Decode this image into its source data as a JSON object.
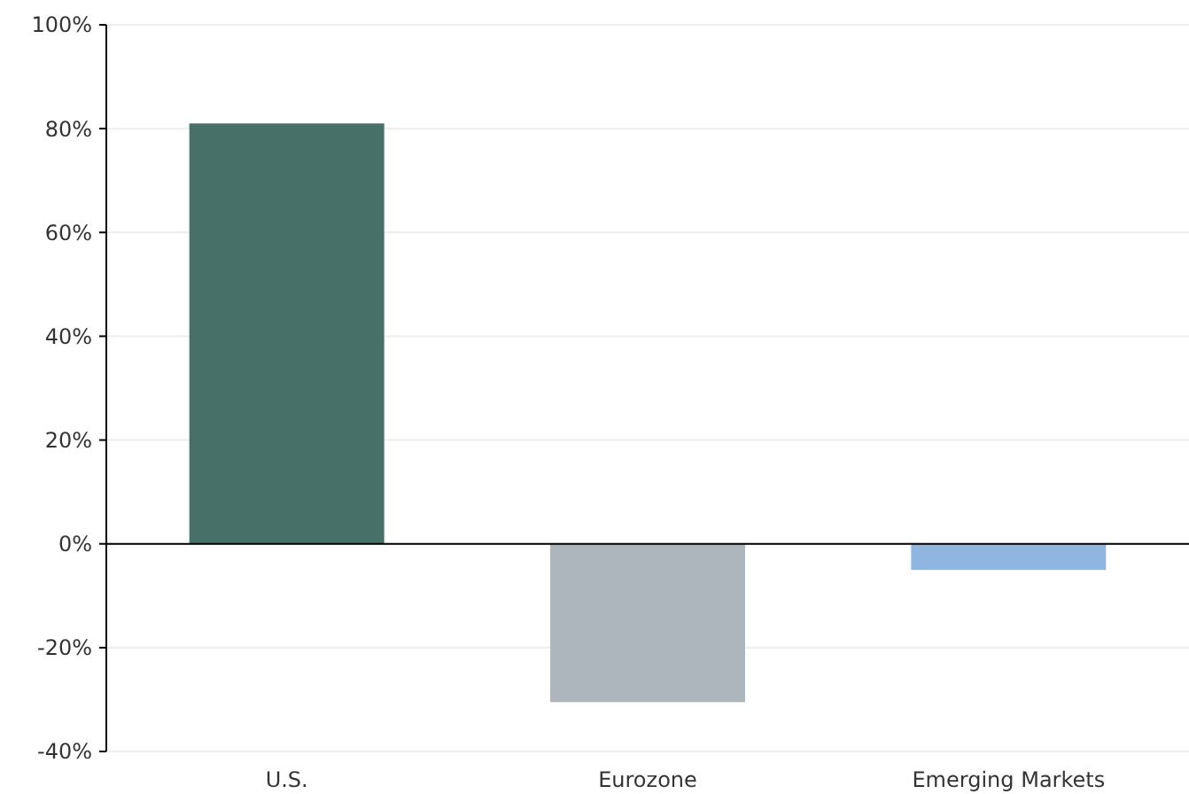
{
  "chart_data": {
    "type": "bar",
    "categories": [
      "U.S.",
      "Eurozone",
      "Emerging Markets"
    ],
    "values": [
      81,
      -30.5,
      -5
    ],
    "colors": [
      "#477068",
      "#adb5bd",
      "#8fb5e0"
    ],
    "ylim": [
      -40,
      100
    ],
    "yticks": [
      {
        "value": -40,
        "label": "-40%"
      },
      {
        "value": -20,
        "label": "-20%"
      },
      {
        "value": 0,
        "label": "0%"
      },
      {
        "value": 20,
        "label": "20%"
      },
      {
        "value": 40,
        "label": "40%"
      },
      {
        "value": 60,
        "label": "60%"
      },
      {
        "value": 80,
        "label": "80%"
      },
      {
        "value": 100,
        "label": "100%"
      }
    ],
    "grid": "y"
  }
}
